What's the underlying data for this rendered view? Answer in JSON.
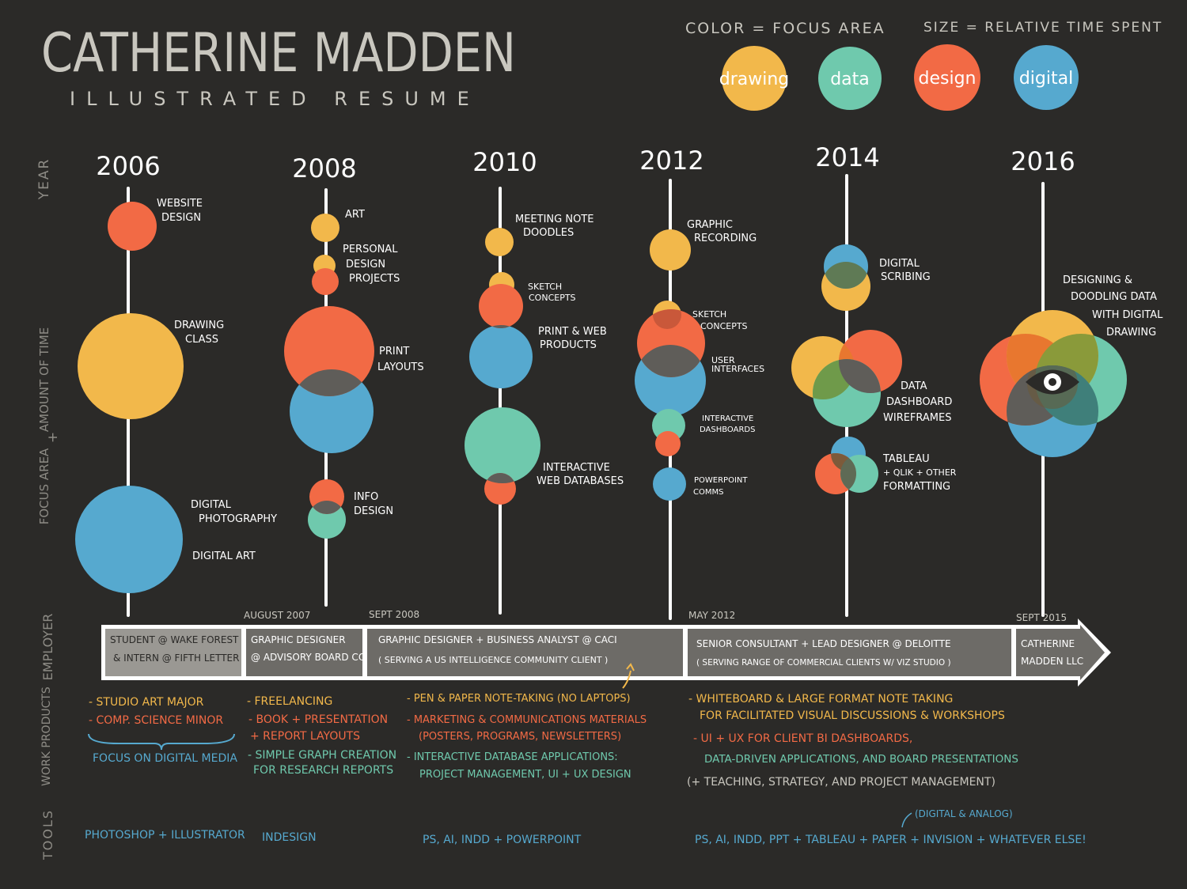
{
  "header": {
    "name": "CATHERINE MADDEN",
    "subtitle": "ILLUSTRATED RESUME"
  },
  "legend": {
    "color_label": "COLOR = FOCUS AREA",
    "size_label": "SIZE = RELATIVE TIME SPENT",
    "items": [
      {
        "label": "drawing",
        "color": "#f2b84b"
      },
      {
        "label": "data",
        "color": "#6fc9ad"
      },
      {
        "label": "design",
        "color": "#f26a45"
      },
      {
        "label": "digital",
        "color": "#56a9cf"
      }
    ]
  },
  "row_labels": {
    "year": "YEAR",
    "amount": "AMOUNT OF TIME",
    "plus": "+",
    "focus": "FOCUS AREA",
    "employer": "EMPLOYER",
    "work": "WORK PRODUCTS",
    "tools": "TOOLS"
  },
  "timeline": [
    {
      "year": "2006",
      "items": [
        {
          "label": [
            "WEBSITE",
            "DESIGN"
          ],
          "focus": [
            "design"
          ],
          "time": 1
        },
        {
          "label": [
            "DRAWING",
            "CLASS"
          ],
          "focus": [
            "drawing"
          ],
          "time": 3.3
        },
        {
          "label": [
            "DIGITAL",
            "PHOTOGRAPHY",
            "",
            "DIGITAL ART"
          ],
          "focus": [
            "digital"
          ],
          "time": 3.8
        }
      ]
    },
    {
      "year": "2008",
      "items": [
        {
          "label": [
            "ART"
          ],
          "focus": [
            "drawing"
          ],
          "time": 0.35
        },
        {
          "label": [
            "PERSONAL",
            "DESIGN",
            "PROJECTS"
          ],
          "focus": [
            "drawing",
            "design"
          ],
          "time": 0.25
        },
        {
          "label": [
            "PRINT",
            "LAYOUTS"
          ],
          "focus": [
            "design",
            "digital"
          ],
          "time": 3.4
        },
        {
          "label": [
            "INFO",
            "DESIGN"
          ],
          "focus": [
            "design",
            "data"
          ],
          "time": 0.5
        }
      ]
    },
    {
      "year": "2010",
      "items": [
        {
          "label": [
            "MEETING NOTE",
            "DOODLES"
          ],
          "focus": [
            "drawing"
          ],
          "time": 0.35
        },
        {
          "label": [
            "SKETCH",
            "CONCEPTS"
          ],
          "focus": [
            "drawing"
          ],
          "time": 0.2
        },
        {
          "label": [
            "PRINT & WEB",
            "PRODUCTS"
          ],
          "focus": [
            "design",
            "digital"
          ],
          "time": 1.6
        },
        {
          "label": [
            "INTERACTIVE",
            "WEB DATABASES"
          ],
          "focus": [
            "data",
            "design"
          ],
          "time": 2.2
        }
      ]
    },
    {
      "year": "2012",
      "items": [
        {
          "label": [
            "GRAPHIC",
            "RECORDING"
          ],
          "focus": [
            "drawing"
          ],
          "time": 0.6
        },
        {
          "label": [
            "SKETCH",
            "CONCEPTS"
          ],
          "focus": [
            "drawing"
          ],
          "time": 0.3
        },
        {
          "label": [
            "USER",
            "INTERFACES"
          ],
          "focus": [
            "design",
            "digital"
          ],
          "time": 2.0
        },
        {
          "label": [
            "INTERACTIVE",
            "DASHBOARDS"
          ],
          "focus": [
            "data",
            "design"
          ],
          "time": 0.4
        },
        {
          "label": [
            "POWERPOINT",
            "COMMS"
          ],
          "focus": [
            "digital"
          ],
          "time": 0.35
        }
      ]
    },
    {
      "year": "2014",
      "items": [
        {
          "label": [
            "DIGITAL",
            "SCRIBING"
          ],
          "focus": [
            "digital",
            "drawing"
          ],
          "time": 0.7
        },
        {
          "label": [
            "DATA",
            "DASHBOARD",
            "WIREFRAMES"
          ],
          "focus": [
            "drawing",
            "design",
            "data"
          ],
          "time": 2.0
        },
        {
          "label": [
            "TABLEAU",
            "+ QLIK + OTHER",
            "FORMATTING"
          ],
          "focus": [
            "digital",
            "design",
            "data"
          ],
          "time": 0.7
        }
      ]
    },
    {
      "year": "2016",
      "items": [
        {
          "label": [
            "DESIGNING &",
            "DOODLING DATA",
            "WITH DIGITAL",
            "DRAWING"
          ],
          "focus": [
            "drawing",
            "design",
            "data",
            "digital"
          ],
          "time": 4.5
        }
      ]
    }
  ],
  "employers": {
    "dates": [
      "AUGUST 2007",
      "SEPT 2008",
      "MAY 2012",
      "SEPT 2015"
    ],
    "boxes": [
      [
        "STUDENT @ WAKE FOREST",
        "& INTERN @ FIFTH LETTER"
      ],
      [
        "GRAPHIC DESIGNER",
        "@ ADVISORY BOARD CO"
      ],
      [
        "GRAPHIC DESIGNER + BUSINESS ANALYST @ CACI",
        "( SERVING A US INTELLIGENCE COMMUNITY CLIENT )"
      ],
      [
        "SENIOR CONSULTANT + LEAD DESIGNER @ DELOITTE",
        "( SERVING RANGE OF COMMERCIAL CLIENTS W/ VIZ STUDIO )"
      ],
      [
        "CATHERINE",
        "MADDEN LLC"
      ]
    ]
  },
  "work_products": {
    "col1": [
      "- STUDIO ART MAJOR",
      "- COMP. SCIENCE MINOR",
      "FOCUS ON DIGITAL MEDIA"
    ],
    "col2": [
      "- FREELANCING",
      "- BOOK + PRESENTATION",
      "+ REPORT LAYOUTS",
      "- SIMPLE GRAPH CREATION",
      "FOR RESEARCH REPORTS"
    ],
    "col3": [
      "- PEN & PAPER NOTE-TAKING (NO LAPTOPS)",
      "- MARKETING & COMMUNICATIONS MATERIALS",
      "(POSTERS, PROGRAMS, NEWSLETTERS)",
      "- INTERACTIVE DATABASE APPLICATIONS:",
      "PROJECT MANAGEMENT, UI + UX DESIGN"
    ],
    "col4": [
      "- WHITEBOARD & LARGE FORMAT NOTE TAKING",
      "FOR FACILITATED VISUAL DISCUSSIONS & WORKSHOPS",
      "- UI + UX FOR CLIENT BI DASHBOARDS,",
      "DATA-DRIVEN APPLICATIONS, AND BOARD PRESENTATIONS",
      "(+ TEACHING, STRATEGY, AND PROJECT MANAGEMENT)"
    ]
  },
  "tools": {
    "t1": "PHOTOSHOP + ILLUSTRATOR",
    "t2": "INDESIGN",
    "t3": "PS, AI, INDD + POWERPOINT",
    "t4": "PS, AI, INDD, PPT + TABLEAU + PAPER + INVISION + WHATEVER ELSE!",
    "t4_note": "(DIGITAL & ANALOG)"
  }
}
